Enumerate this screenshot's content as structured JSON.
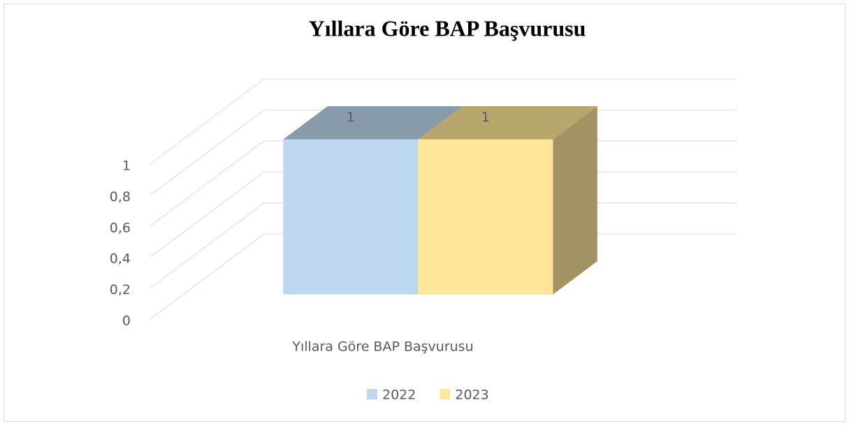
{
  "chart_data": {
    "type": "bar3d",
    "title": "Yıllara Göre BAP Başvurusu",
    "categories": [
      "Yıllara Göre BAP Başvurusu"
    ],
    "series": [
      {
        "name": "2022",
        "color": "#bdd7ee",
        "values": [
          1
        ]
      },
      {
        "name": "2023",
        "color": "#ffe699",
        "values": [
          1
        ]
      }
    ],
    "ylim": [
      0,
      1
    ],
    "yticks": [
      0,
      {
        "value": 0.2,
        "label": "0,2"
      },
      {
        "value": 0.4,
        "label": "0,4"
      },
      {
        "value": 0.6,
        "label": "0,6"
      },
      {
        "value": 0.8,
        "label": "0,8"
      },
      1
    ],
    "grid": true,
    "legend": "bottom"
  }
}
